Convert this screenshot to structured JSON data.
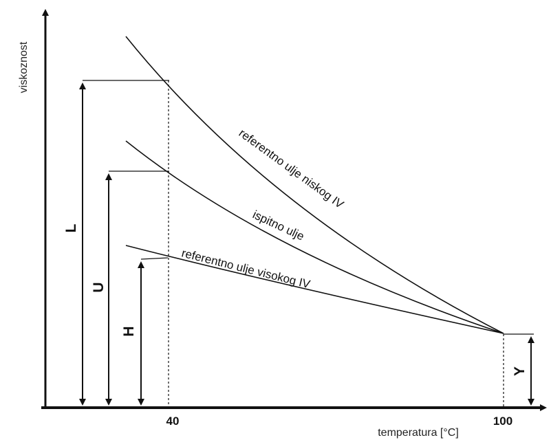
{
  "axes": {
    "y_label": "viskoznost",
    "x_label": "temperatura [°C]",
    "tick_40": "40",
    "tick_100": "100"
  },
  "curves": {
    "low_vi": "referentno ulje niskog IV",
    "test": "ispitno ulje",
    "high_vi": "referentno ulje visokog IV"
  },
  "brackets": {
    "L": "L",
    "U": "U",
    "H": "H",
    "Y": "Y"
  }
}
